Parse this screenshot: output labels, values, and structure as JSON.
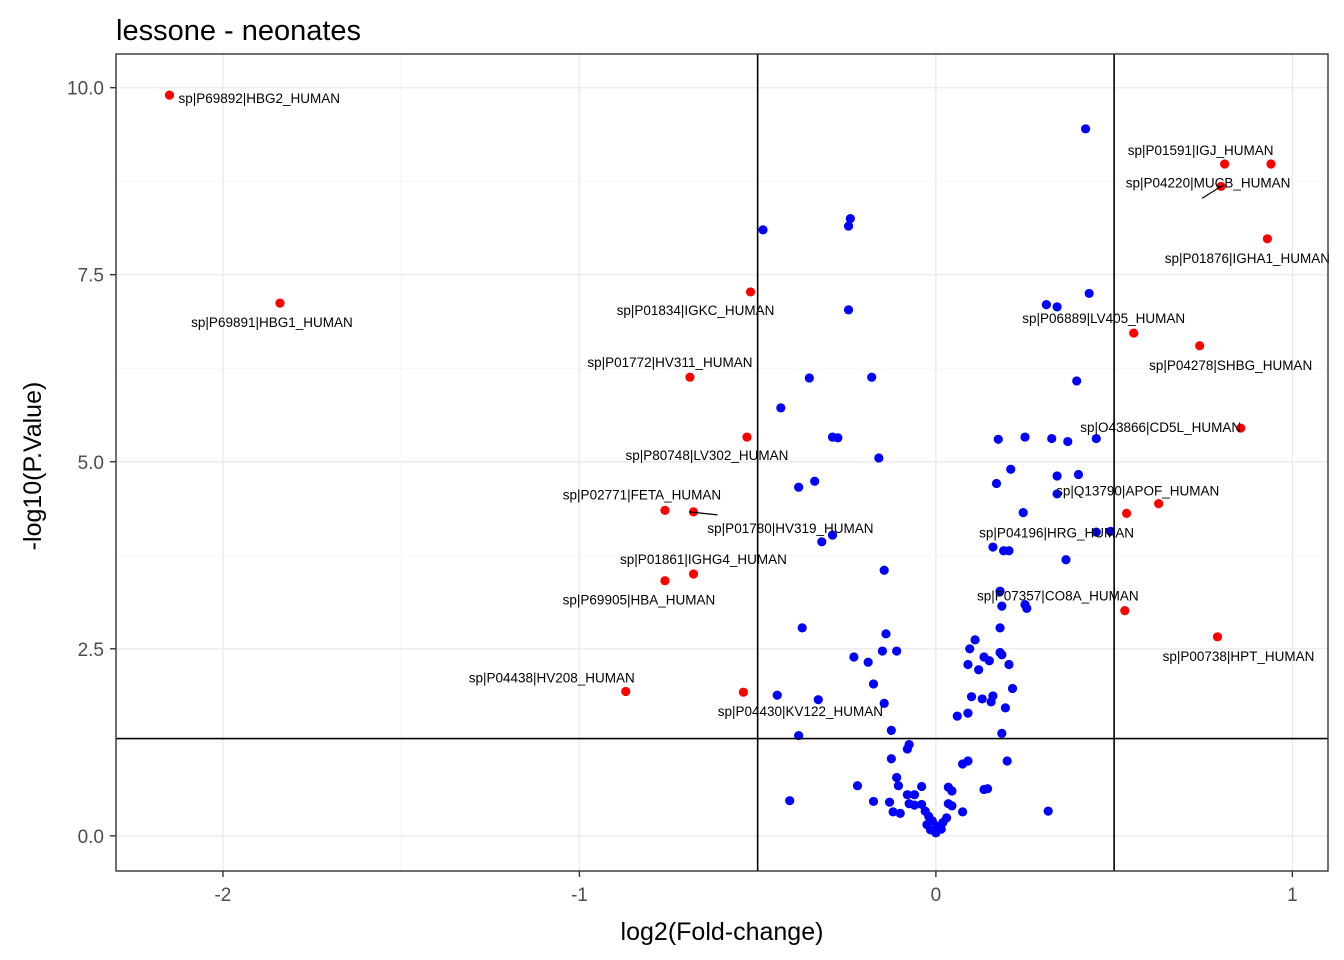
{
  "chart_data": {
    "type": "scatter",
    "title": "lessone - neonates",
    "xlabel": "log2(Fold-change)",
    "ylabel": "-log10(P.Value)",
    "xlim": [
      -2.3,
      1.1
    ],
    "ylim": [
      -0.47,
      10.45
    ],
    "x_ticks": [
      -2,
      -1,
      0,
      1
    ],
    "x_tick_labels": [
      "-2",
      "-1",
      "0",
      "1"
    ],
    "y_ticks": [
      0,
      2.5,
      5,
      7.5,
      10
    ],
    "y_tick_labels": [
      "0.0",
      "2.5",
      "5.0",
      "7.5",
      "10.0"
    ],
    "grid": true,
    "legend": "none",
    "reference_lines": {
      "vertical": [
        -0.5,
        0.5
      ],
      "horizontal": [
        1.3
      ]
    },
    "colors": {
      "significant": "#ff0000",
      "not_significant": "#0000ff",
      "reference": "#000000"
    },
    "series": [
      {
        "color": "#0000ff",
        "points": [
          [
            0.42,
            9.45
          ],
          [
            -0.24,
            8.25
          ],
          [
            -0.245,
            8.15
          ],
          [
            -0.485,
            8.1
          ],
          [
            -0.245,
            7.03
          ],
          [
            0.43,
            7.25
          ],
          [
            0.31,
            7.1
          ],
          [
            0.34,
            7.07
          ],
          [
            0.395,
            6.08
          ],
          [
            -0.355,
            6.12
          ],
          [
            -0.18,
            6.13
          ],
          [
            -0.435,
            5.72
          ],
          [
            -0.29,
            5.33
          ],
          [
            -0.275,
            5.32
          ],
          [
            -0.16,
            5.05
          ],
          [
            0.175,
            5.3
          ],
          [
            0.25,
            5.33
          ],
          [
            0.325,
            5.31
          ],
          [
            0.37,
            5.27
          ],
          [
            0.45,
            5.31
          ],
          [
            0.21,
            4.9
          ],
          [
            0.34,
            4.81
          ],
          [
            0.4,
            4.83
          ],
          [
            0.17,
            4.71
          ],
          [
            -0.34,
            4.74
          ],
          [
            -0.385,
            4.66
          ],
          [
            0.34,
            4.57
          ],
          [
            0.245,
            4.32
          ],
          [
            0.45,
            4.06
          ],
          [
            0.49,
            4.07
          ],
          [
            -0.29,
            4.02
          ],
          [
            -0.32,
            3.93
          ],
          [
            0.16,
            3.86
          ],
          [
            0.19,
            3.81
          ],
          [
            0.205,
            3.81
          ],
          [
            0.365,
            3.69
          ],
          [
            -0.145,
            3.55
          ],
          [
            0.18,
            3.27
          ],
          [
            0.185,
            3.07
          ],
          [
            0.25,
            3.09
          ],
          [
            0.255,
            3.04
          ],
          [
            -0.375,
            2.78
          ],
          [
            0.18,
            2.78
          ],
          [
            -0.14,
            2.7
          ],
          [
            0.11,
            2.62
          ],
          [
            0.095,
            2.5
          ],
          [
            0.18,
            2.45
          ],
          [
            0.185,
            2.42
          ],
          [
            -0.11,
            2.47
          ],
          [
            -0.15,
            2.47
          ],
          [
            -0.23,
            2.39
          ],
          [
            -0.19,
            2.32
          ],
          [
            0.135,
            2.39
          ],
          [
            0.15,
            2.34
          ],
          [
            0.09,
            2.29
          ],
          [
            0.205,
            2.29
          ],
          [
            0.12,
            2.22
          ],
          [
            -0.175,
            2.03
          ],
          [
            0.215,
            1.97
          ],
          [
            0.16,
            1.87
          ],
          [
            0.1,
            1.86
          ],
          [
            0.13,
            1.83
          ],
          [
            0.155,
            1.79
          ],
          [
            -0.445,
            1.88
          ],
          [
            -0.33,
            1.82
          ],
          [
            -0.145,
            1.77
          ],
          [
            0.195,
            1.71
          ],
          [
            0.09,
            1.64
          ],
          [
            0.06,
            1.6
          ],
          [
            -0.125,
            1.41
          ],
          [
            0.185,
            1.37
          ],
          [
            -0.385,
            1.34
          ],
          [
            -0.075,
            1.22
          ],
          [
            -0.08,
            1.16
          ],
          [
            0.09,
            1.0
          ],
          [
            0.2,
            1.0
          ],
          [
            -0.125,
            1.03
          ],
          [
            0.075,
            0.96
          ],
          [
            -0.11,
            0.78
          ],
          [
            -0.105,
            0.67
          ],
          [
            -0.22,
            0.67
          ],
          [
            -0.04,
            0.66
          ],
          [
            0.035,
            0.65
          ],
          [
            0.045,
            0.6
          ],
          [
            0.135,
            0.62
          ],
          [
            0.145,
            0.63
          ],
          [
            -0.08,
            0.55
          ],
          [
            -0.06,
            0.55
          ],
          [
            -0.075,
            0.43
          ],
          [
            -0.13,
            0.45
          ],
          [
            -0.175,
            0.46
          ],
          [
            -0.41,
            0.47
          ],
          [
            -0.06,
            0.41
          ],
          [
            -0.04,
            0.42
          ],
          [
            0.035,
            0.43
          ],
          [
            0.045,
            0.4
          ],
          [
            -0.03,
            0.33
          ],
          [
            0.075,
            0.32
          ],
          [
            0.315,
            0.33
          ],
          [
            -0.02,
            0.26
          ],
          [
            0.03,
            0.24
          ],
          [
            -0.01,
            0.2
          ],
          [
            0.02,
            0.18
          ],
          [
            0.005,
            0.13
          ],
          [
            0.015,
            0.09
          ],
          [
            -0.025,
            0.15
          ],
          [
            -0.015,
            0.08
          ],
          [
            0.0,
            0.04
          ],
          [
            -0.1,
            0.3
          ],
          [
            -0.12,
            0.32
          ]
        ]
      },
      {
        "color": "#ff0000",
        "points": [
          [
            -2.15,
            9.9,
            "sp|P69892|HBG2_HUMAN"
          ],
          [
            -1.84,
            7.12,
            "sp|P69891|HBG1_HUMAN"
          ],
          [
            0.81,
            8.98,
            "sp|P01591|IGJ_HUMAN"
          ],
          [
            0.94,
            8.98,
            ""
          ],
          [
            0.8,
            8.68,
            "sp|P04220|MUCB_HUMAN"
          ],
          [
            0.93,
            7.98,
            "sp|P01876|IGHA1_HUMAN"
          ],
          [
            -0.52,
            7.27,
            "sp|P01834|IGKC_HUMAN"
          ],
          [
            0.555,
            6.72,
            "sp|P06889|LV405_HUMAN"
          ],
          [
            0.74,
            6.55,
            "sp|P04278|SHBG_HUMAN"
          ],
          [
            -0.69,
            6.13,
            "sp|P01772|HV311_HUMAN"
          ],
          [
            0.855,
            5.45,
            "sp|O43866|CD5L_HUMAN"
          ],
          [
            -0.53,
            5.33,
            "sp|P80748|LV302_HUMAN"
          ],
          [
            0.625,
            4.44,
            "sp|Q13790|APOF_HUMAN"
          ],
          [
            0.535,
            4.31,
            "sp|P04196|HRG_HUMAN"
          ],
          [
            -0.76,
            4.35,
            "sp|P02771|FETA_HUMAN"
          ],
          [
            -0.68,
            4.33,
            "sp|P01780|HV319_HUMAN"
          ],
          [
            -0.68,
            3.5,
            "sp|P01861|IGHG4_HUMAN"
          ],
          [
            -0.76,
            3.41,
            "sp|P69905|HBA_HUMAN"
          ],
          [
            0.53,
            3.01,
            "sp|P07357|CO8A_HUMAN"
          ],
          [
            0.79,
            2.66,
            "sp|P00738|HPT_HUMAN"
          ],
          [
            -0.87,
            1.93,
            "sp|P04438|HV208_HUMAN"
          ],
          [
            -0.54,
            1.92,
            "sp|P04430|KV122_HUMAN"
          ]
        ]
      }
    ]
  }
}
